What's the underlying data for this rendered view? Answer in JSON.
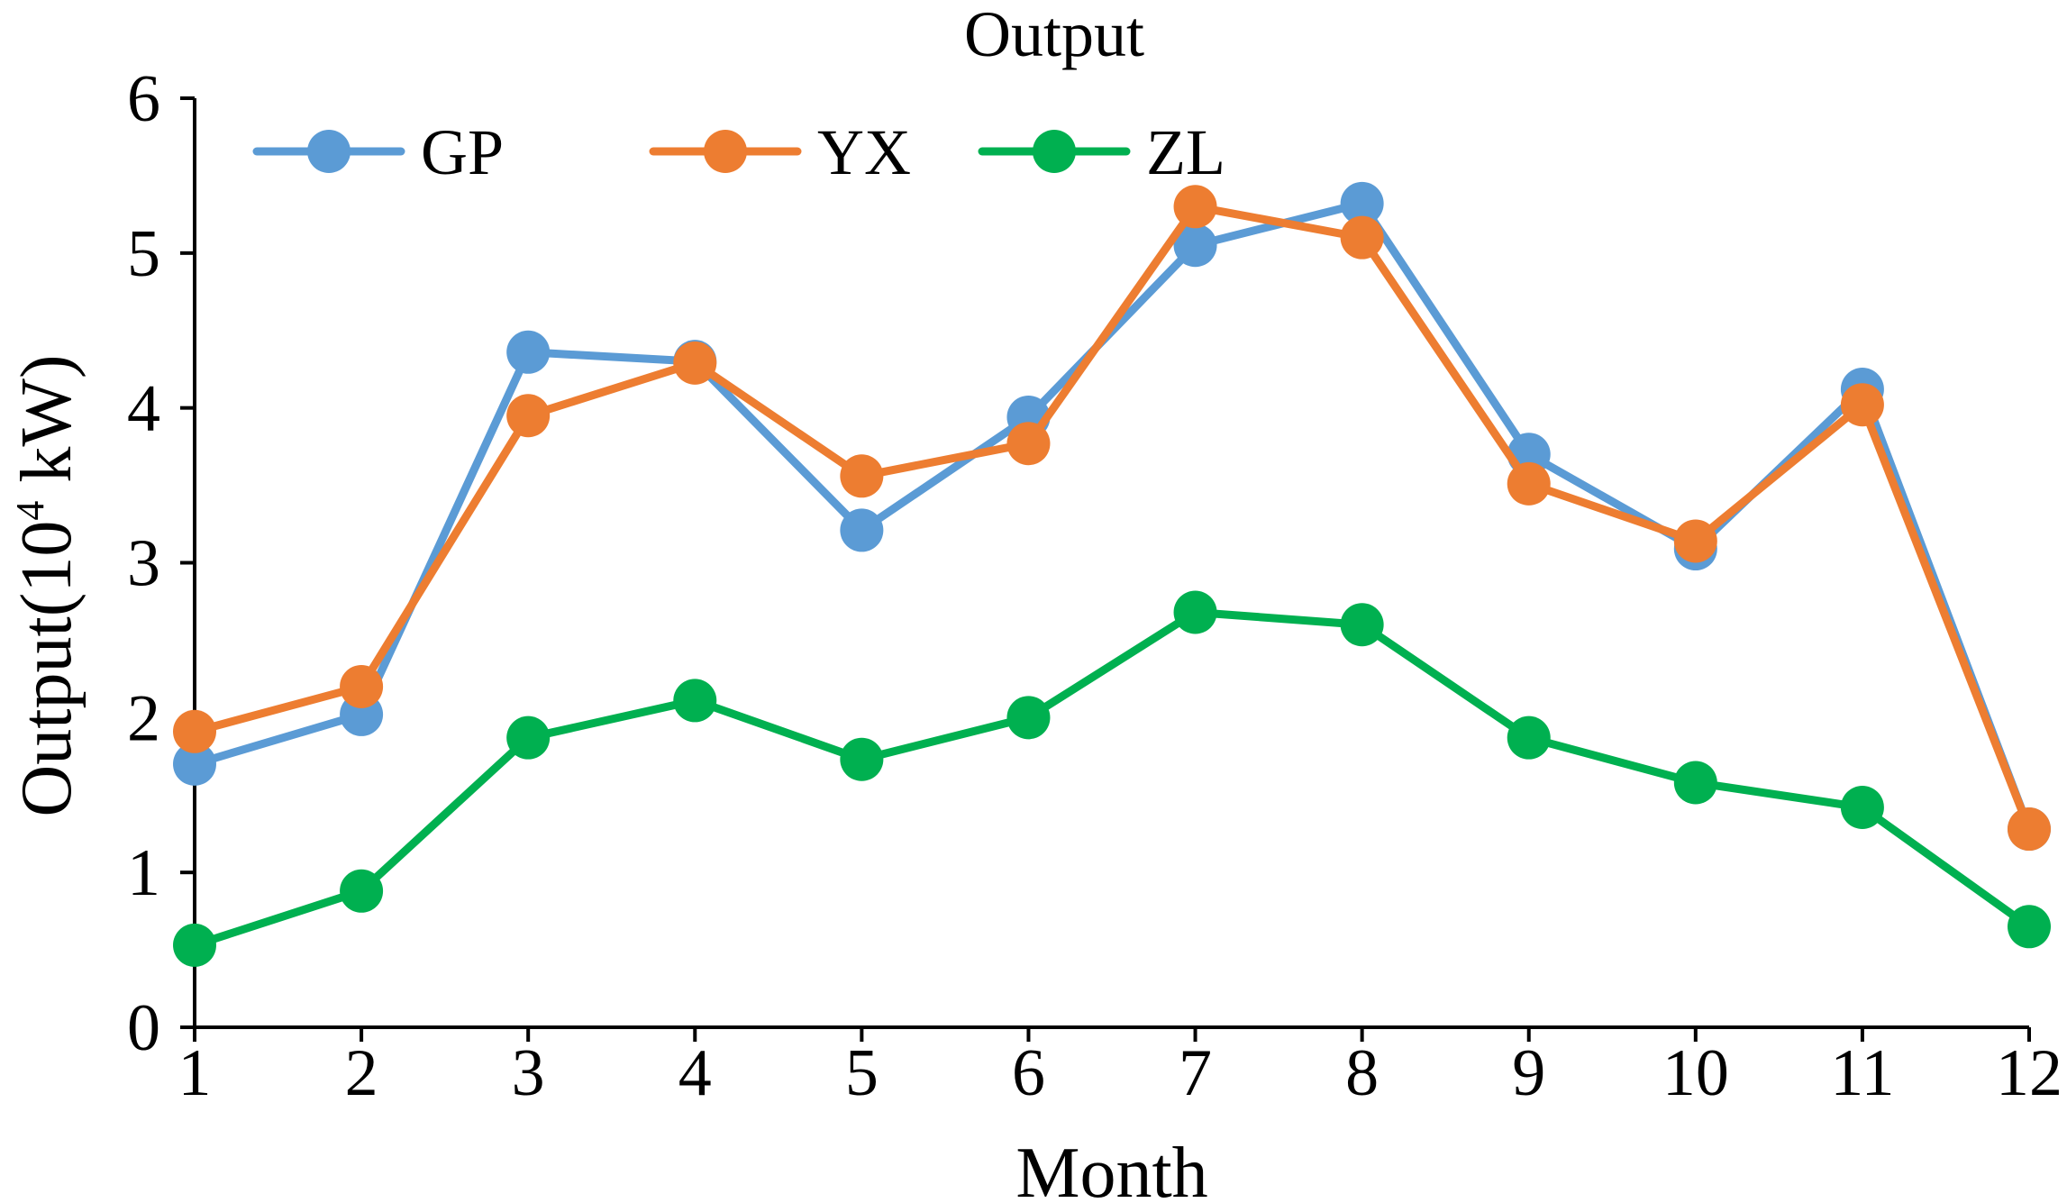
{
  "chart_data": {
    "type": "line",
    "title": "Output",
    "xlabel": "Month",
    "ylabel": {
      "prefix": "Output(10",
      "superscript": "4",
      "suffix": " kW)"
    },
    "x": [
      1,
      2,
      3,
      4,
      5,
      6,
      7,
      8,
      9,
      10,
      11,
      12
    ],
    "xlim": [
      1,
      12
    ],
    "ylim": [
      0,
      6
    ],
    "yticks": [
      0,
      1,
      2,
      3,
      4,
      5,
      6
    ],
    "grid": false,
    "legend_position": "top-left",
    "series": [
      {
        "name": "GP",
        "color": "#5B9BD5",
        "values": [
          1.7,
          2.02,
          4.36,
          4.3,
          3.21,
          3.94,
          5.05,
          5.32,
          3.7,
          3.09,
          4.12,
          1.28
        ]
      },
      {
        "name": "YX",
        "color": "#ED7D31",
        "values": [
          1.91,
          2.2,
          3.95,
          4.29,
          3.56,
          3.77,
          5.3,
          5.1,
          3.51,
          3.14,
          4.02,
          1.28
        ]
      },
      {
        "name": "ZL",
        "color": "#00B050",
        "values": [
          0.53,
          0.88,
          1.87,
          2.11,
          1.73,
          2.0,
          2.68,
          2.6,
          1.87,
          1.58,
          1.42,
          0.65
        ]
      }
    ]
  }
}
